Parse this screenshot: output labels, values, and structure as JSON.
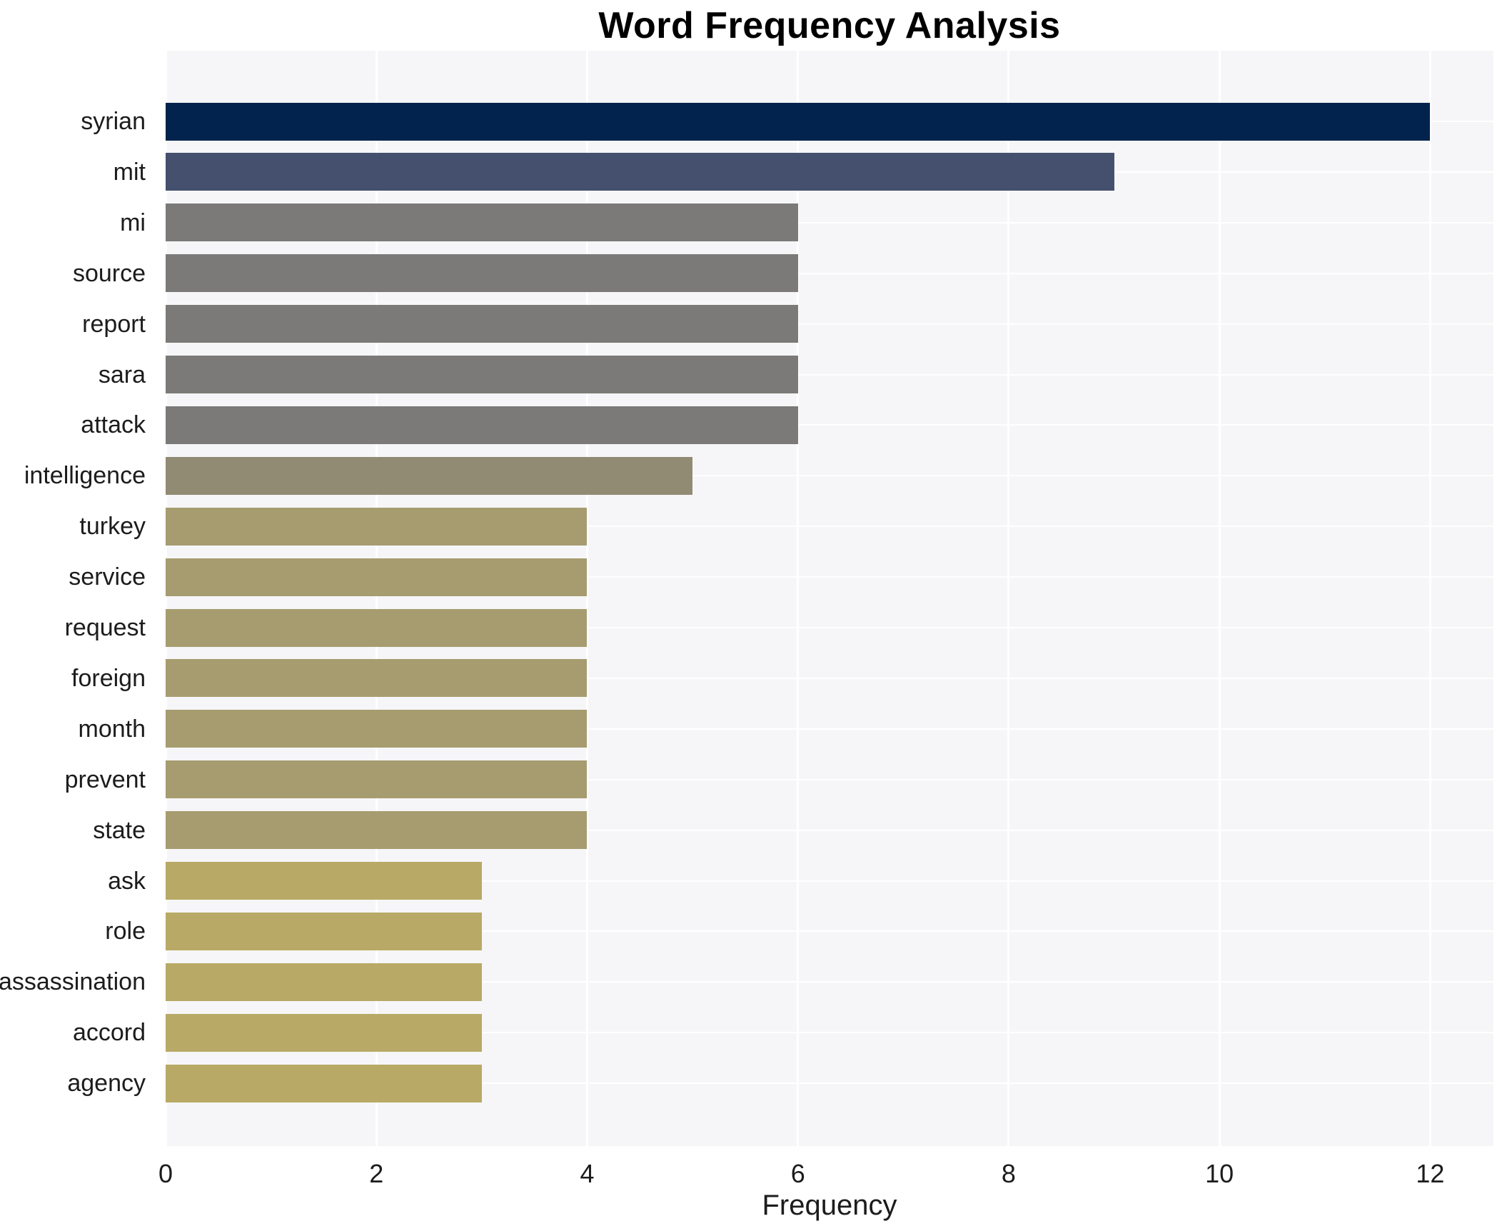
{
  "chart_data": {
    "type": "bar",
    "orientation": "horizontal",
    "title": "Word Frequency Analysis",
    "xlabel": "Frequency",
    "ylabel": "",
    "xlim": [
      0,
      12.6
    ],
    "xticks": [
      0,
      2,
      4,
      6,
      8,
      10,
      12
    ],
    "grid": "white gridlines on light panel, vertical at xticks and horizontal at each bar center",
    "legend": "none",
    "categories": [
      "syrian",
      "mit",
      "mi",
      "source",
      "report",
      "sara",
      "attack",
      "intelligence",
      "turkey",
      "service",
      "request",
      "foreign",
      "month",
      "prevent",
      "state",
      "ask",
      "role",
      "assassination",
      "accord",
      "agency"
    ],
    "values": [
      12,
      9,
      6,
      6,
      6,
      6,
      6,
      5,
      4,
      4,
      4,
      4,
      4,
      4,
      4,
      3,
      3,
      3,
      3,
      3
    ],
    "bar_colors": [
      "#02234d",
      "#45506e",
      "#7b7a78",
      "#7b7a78",
      "#7b7a78",
      "#7b7a78",
      "#7b7a78",
      "#918b74",
      "#a69c6f",
      "#a69c6f",
      "#a69c6f",
      "#a69c6f",
      "#a69c6f",
      "#a69c6f",
      "#a69c6f",
      "#b8aa66",
      "#b8aa66",
      "#b8aa66",
      "#b8aa66",
      "#b8aa66"
    ],
    "colors": {
      "figure_background": "#ffffff",
      "plot_background": "#f6f6f8",
      "gridline": "#ffffff",
      "text": "#1c1c1c",
      "title_text": "#000000"
    }
  }
}
